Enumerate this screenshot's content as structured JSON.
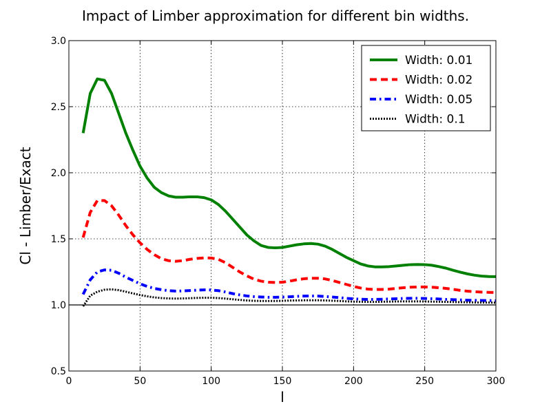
{
  "chart_data": {
    "type": "line",
    "title": "Impact of Limber approximation for different bin widths.",
    "xlabel": "l",
    "ylabel": "Cl - Limber/Exact",
    "xlim": [
      0,
      300
    ],
    "ylim": [
      0.5,
      3.0
    ],
    "xticks": [
      0,
      50,
      100,
      150,
      200,
      250,
      300
    ],
    "yticks": [
      0.5,
      1.0,
      1.5,
      2.0,
      2.5,
      3.0
    ],
    "xtick_labels": [
      "0",
      "50",
      "100",
      "150",
      "200",
      "250",
      "300"
    ],
    "ytick_labels": [
      "0.5",
      "1.0",
      "1.5",
      "2.0",
      "2.5",
      "3.0"
    ],
    "grid": true,
    "legend_position": "top-right",
    "reference_line": 1.0,
    "series": [
      {
        "name": "Width: 0.01",
        "color": "#008000",
        "style": "solid",
        "x": [
          10,
          15,
          20,
          25,
          30,
          35,
          40,
          45,
          50,
          55,
          60,
          65,
          70,
          75,
          80,
          85,
          90,
          95,
          100,
          105,
          110,
          115,
          120,
          125,
          130,
          135,
          140,
          145,
          150,
          155,
          160,
          165,
          170,
          175,
          180,
          185,
          190,
          195,
          200,
          205,
          210,
          215,
          220,
          225,
          230,
          235,
          240,
          245,
          250,
          255,
          260,
          265,
          270,
          275,
          280,
          285,
          290,
          295,
          300
        ],
        "values": [
          2.3,
          2.6,
          2.71,
          2.7,
          2.6,
          2.45,
          2.3,
          2.17,
          2.05,
          1.96,
          1.89,
          1.85,
          1.825,
          1.815,
          1.815,
          1.818,
          1.818,
          1.812,
          1.795,
          1.76,
          1.71,
          1.65,
          1.59,
          1.53,
          1.485,
          1.45,
          1.435,
          1.432,
          1.435,
          1.445,
          1.455,
          1.462,
          1.465,
          1.46,
          1.445,
          1.42,
          1.39,
          1.36,
          1.335,
          1.31,
          1.295,
          1.288,
          1.288,
          1.29,
          1.295,
          1.3,
          1.305,
          1.306,
          1.305,
          1.3,
          1.29,
          1.278,
          1.262,
          1.248,
          1.235,
          1.225,
          1.218,
          1.215,
          1.214
        ]
      },
      {
        "name": "Width: 0.02",
        "color": "#ff0000",
        "style": "dashed",
        "x": [
          10,
          15,
          20,
          25,
          30,
          35,
          40,
          45,
          50,
          55,
          60,
          65,
          70,
          75,
          80,
          85,
          90,
          95,
          100,
          105,
          110,
          115,
          120,
          125,
          130,
          135,
          140,
          145,
          150,
          155,
          160,
          165,
          170,
          175,
          180,
          185,
          190,
          195,
          200,
          205,
          210,
          215,
          220,
          225,
          230,
          235,
          240,
          245,
          250,
          255,
          260,
          265,
          270,
          275,
          280,
          285,
          290,
          295,
          300
        ],
        "values": [
          1.51,
          1.7,
          1.79,
          1.79,
          1.75,
          1.68,
          1.6,
          1.53,
          1.47,
          1.42,
          1.38,
          1.35,
          1.335,
          1.33,
          1.335,
          1.345,
          1.352,
          1.356,
          1.355,
          1.345,
          1.32,
          1.285,
          1.25,
          1.22,
          1.195,
          1.18,
          1.172,
          1.17,
          1.172,
          1.18,
          1.19,
          1.198,
          1.202,
          1.202,
          1.197,
          1.185,
          1.17,
          1.155,
          1.14,
          1.128,
          1.12,
          1.117,
          1.117,
          1.12,
          1.125,
          1.13,
          1.134,
          1.136,
          1.136,
          1.134,
          1.13,
          1.125,
          1.118,
          1.11,
          1.104,
          1.1,
          1.097,
          1.095,
          1.094
        ]
      },
      {
        "name": "Width: 0.05",
        "color": "#0000ff",
        "style": "dashdot",
        "x": [
          10,
          15,
          20,
          25,
          30,
          35,
          40,
          45,
          50,
          55,
          60,
          65,
          70,
          75,
          80,
          85,
          90,
          95,
          100,
          105,
          110,
          115,
          120,
          125,
          130,
          135,
          140,
          145,
          150,
          155,
          160,
          165,
          170,
          175,
          180,
          185,
          190,
          195,
          200,
          205,
          210,
          215,
          220,
          225,
          230,
          235,
          240,
          245,
          250,
          255,
          260,
          265,
          270,
          275,
          280,
          285,
          290,
          295,
          300
        ],
        "values": [
          1.08,
          1.19,
          1.25,
          1.265,
          1.262,
          1.24,
          1.21,
          1.185,
          1.16,
          1.14,
          1.125,
          1.115,
          1.108,
          1.105,
          1.106,
          1.109,
          1.112,
          1.114,
          1.113,
          1.108,
          1.098,
          1.086,
          1.076,
          1.068,
          1.063,
          1.06,
          1.058,
          1.058,
          1.059,
          1.062,
          1.065,
          1.067,
          1.068,
          1.067,
          1.064,
          1.06,
          1.055,
          1.05,
          1.046,
          1.043,
          1.042,
          1.042,
          1.043,
          1.045,
          1.047,
          1.049,
          1.05,
          1.05,
          1.049,
          1.047,
          1.045,
          1.042,
          1.04,
          1.038,
          1.036,
          1.035,
          1.034,
          1.033,
          1.032
        ]
      },
      {
        "name": "Width: 0.1",
        "color": "#000000",
        "style": "dotted",
        "x": [
          10,
          15,
          20,
          25,
          30,
          35,
          40,
          45,
          50,
          55,
          60,
          65,
          70,
          75,
          80,
          85,
          90,
          95,
          100,
          105,
          110,
          115,
          120,
          125,
          130,
          135,
          140,
          145,
          150,
          155,
          160,
          165,
          170,
          175,
          180,
          185,
          190,
          195,
          200,
          205,
          210,
          215,
          220,
          225,
          230,
          235,
          240,
          245,
          250,
          255,
          260,
          265,
          270,
          275,
          280,
          285,
          290,
          295,
          300
        ],
        "values": [
          0.99,
          1.07,
          1.1,
          1.115,
          1.118,
          1.112,
          1.1,
          1.087,
          1.075,
          1.065,
          1.057,
          1.052,
          1.049,
          1.048,
          1.049,
          1.051,
          1.053,
          1.054,
          1.054,
          1.052,
          1.048,
          1.043,
          1.038,
          1.034,
          1.031,
          1.03,
          1.03,
          1.03,
          1.031,
          1.033,
          1.034,
          1.035,
          1.035,
          1.035,
          1.034,
          1.032,
          1.03,
          1.027,
          1.025,
          1.024,
          1.023,
          1.023,
          1.024,
          1.025,
          1.026,
          1.027,
          1.027,
          1.027,
          1.026,
          1.025,
          1.024,
          1.023,
          1.022,
          1.021,
          1.02,
          1.019,
          1.018,
          1.018,
          1.017
        ]
      }
    ]
  }
}
